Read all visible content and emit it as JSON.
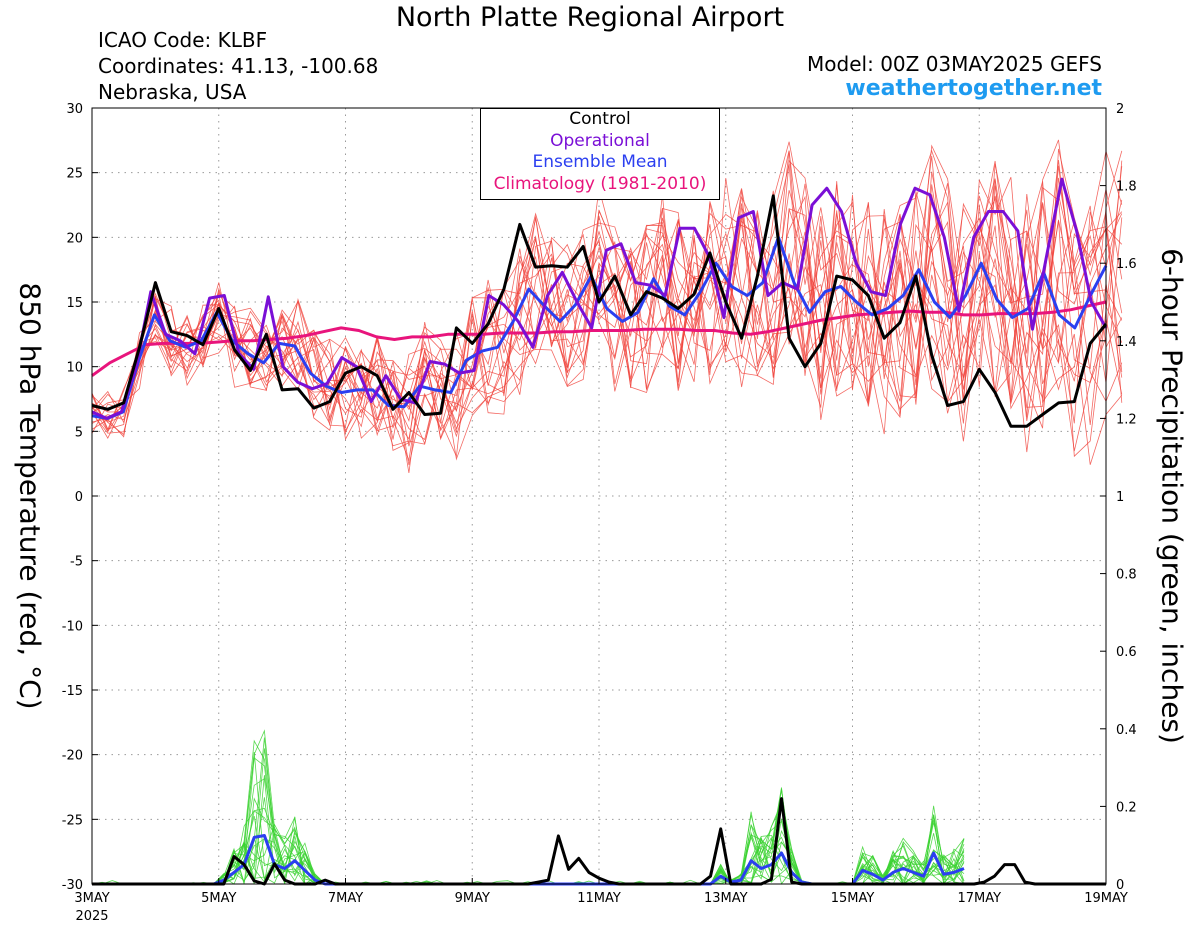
{
  "header": {
    "title": "North Platte Regional Airport",
    "icao": "ICAO Code: KLBF",
    "coordinates": "Coordinates: 41.13, -100.68",
    "region": "Nebraska, USA",
    "model": "Model: 00Z 03MAY2025 GEFS",
    "site": "weathertogether.net"
  },
  "colors": {
    "control": "#000000",
    "operational": "#7a0fd6",
    "ensemble_mean": "#2b3ff0",
    "climatology": "#e8147c",
    "temp_members": "#f0443c",
    "precip_members": "#3cd232",
    "site": "#1e9bf0"
  },
  "legend": [
    {
      "label": "Control",
      "color": "#000000"
    },
    {
      "label": "Operational",
      "color": "#7a0fd6"
    },
    {
      "label": "Ensemble Mean",
      "color": "#2b3ff0"
    },
    {
      "label": "Climatology (1981-2010)",
      "color": "#e8147c"
    }
  ],
  "chart_data": {
    "type": "line",
    "ylabel": "850 hPa Temperature (red, °C)",
    "y2label": "6-hour Precipitation (green, inches)",
    "ylim": [
      -30,
      30
    ],
    "y2lim": [
      0,
      2
    ],
    "yticks": [
      30,
      25,
      20,
      15,
      10,
      5,
      0,
      -5,
      -10,
      -15,
      -20,
      -25,
      -30
    ],
    "y2ticks": [
      "2",
      "1.8",
      "1.6",
      "1.4",
      "1.2",
      "1",
      "0.8",
      "0.6",
      "0.4",
      "0.2",
      "0"
    ],
    "xlim": [
      0,
      16
    ],
    "x_unit": "days since 00Z 3MAY2025, 6-hourly steps",
    "xticks": [
      {
        "x": 0,
        "label": "3MAY",
        "sub": "2025"
      },
      {
        "x": 2,
        "label": "5MAY"
      },
      {
        "x": 4,
        "label": "7MAY"
      },
      {
        "x": 6,
        "label": "9MAY"
      },
      {
        "x": 8,
        "label": "11MAY"
      },
      {
        "x": 10,
        "label": "13MAY"
      },
      {
        "x": 12,
        "label": "15MAY"
      },
      {
        "x": 14,
        "label": "17MAY"
      },
      {
        "x": 16,
        "label": "19MAY"
      }
    ],
    "grid": true,
    "series": [
      {
        "name": "Control",
        "axis": "temp",
        "values": [
          7,
          6.7,
          7.2,
          11.5,
          16.5,
          12.7,
          12.4,
          11.7,
          14.5,
          11.3,
          9.7,
          12.5,
          8.2,
          8.3,
          6.8,
          7.3,
          9.5,
          10,
          9.3,
          6.7,
          8,
          6.3,
          6.4,
          13,
          11.8,
          13.3,
          16,
          21,
          17.7,
          17.8,
          17.7,
          19.3,
          15,
          17,
          14,
          15.8,
          15.3,
          14.5,
          15.6,
          18.8,
          15,
          12.2,
          17,
          23.2,
          12.2,
          10,
          11.8,
          17,
          16.7,
          15.5,
          12.2,
          13.4,
          17,
          10.9,
          7,
          7.3,
          9.8,
          8,
          5.4,
          5.4,
          6.3,
          7.2,
          7.3,
          11.8,
          13.3
        ]
      },
      {
        "name": "Operational",
        "axis": "temp",
        "values": [
          6.5,
          6,
          6.5,
          10,
          15.8,
          12.5,
          12,
          11,
          15.3,
          15.5,
          11,
          9.8,
          15.4,
          10,
          8.8,
          8.3,
          8.7,
          10.7,
          10,
          7.3,
          9.3,
          7.5,
          7.2,
          10.4,
          10.2,
          9.5,
          9.7,
          15.5,
          14.8,
          13.5,
          11.5,
          15.5,
          17.3,
          15,
          13,
          19,
          19.5,
          16.5,
          16.3,
          15.5,
          20.7,
          20.7,
          18.5,
          13.8,
          21.5,
          22,
          15.5,
          16.5,
          16,
          22.5,
          23.8,
          22,
          18,
          15.8,
          15.5,
          21,
          23.8,
          23.3,
          20,
          14.3,
          20,
          22,
          22,
          20.5,
          12.9,
          18.8,
          24.5,
          20.5,
          15,
          13
        ]
      },
      {
        "name": "Ensemble Mean",
        "axis": "temp",
        "values": [
          6.2,
          6,
          6.5,
          10.5,
          14,
          12,
          11.5,
          12,
          14.2,
          12,
          11,
          10.3,
          11.8,
          11.6,
          9.5,
          8.5,
          8,
          8.2,
          8.2,
          7,
          6.9,
          8.5,
          8.2,
          8,
          10.5,
          11.2,
          11.5,
          13.5,
          16,
          14.7,
          13.5,
          14.8,
          17,
          14.5,
          13.5,
          14.2,
          16.8,
          14.7,
          14,
          15.8,
          18,
          16.2,
          15.5,
          16.5,
          20,
          16.5,
          14.2,
          15.8,
          16.2,
          15,
          14,
          14.5,
          15.5,
          17.5,
          15,
          13.8,
          15.5,
          18,
          15.2,
          13.8,
          14.5,
          17.3,
          14,
          13,
          15.5,
          17.8
        ]
      },
      {
        "name": "Climatology (1981-2010)",
        "axis": "temp",
        "values": [
          9.3,
          10.3,
          11,
          11.7,
          11.8,
          11.8,
          11.8,
          11.9,
          12,
          12,
          12.1,
          12.2,
          12.4,
          12.7,
          13,
          12.8,
          12.3,
          12.1,
          12.3,
          12.3,
          12.5,
          12.5,
          12.5,
          12.6,
          12.6,
          12.6,
          12.7,
          12.7,
          12.8,
          12.8,
          12.8,
          12.9,
          12.9,
          12.9,
          12.8,
          12.8,
          12.6,
          12.5,
          12.7,
          13,
          13.3,
          13.6,
          13.8,
          14,
          14.1,
          14.2,
          14.3,
          14.2,
          14.2,
          14,
          14,
          14.1,
          14.1,
          14.1,
          14.2,
          14.4,
          14.7,
          15
        ]
      },
      {
        "name": "Control Precip",
        "axis": "precip",
        "values": [
          0,
          0,
          0,
          0,
          0,
          0,
          0,
          0,
          0,
          0,
          0,
          0,
          0,
          0,
          0.071,
          0.05,
          0.008,
          0,
          0.052,
          0.01,
          0,
          0,
          0,
          0.01,
          0,
          0,
          0,
          0,
          0,
          0,
          0,
          0,
          0,
          0,
          0,
          0,
          0,
          0,
          0,
          0,
          0,
          0,
          0,
          0,
          0.005,
          0.01,
          0.124,
          0.038,
          0.066,
          0.03,
          0.015,
          0.005,
          0,
          0,
          0,
          0,
          0,
          0,
          0,
          0,
          0,
          0.02,
          0.142,
          0,
          0,
          0,
          0,
          0.012,
          0.22,
          0.005,
          0,
          0,
          0,
          0,
          0,
          0,
          0,
          0,
          0,
          0,
          0,
          0,
          0,
          0,
          0,
          0,
          0,
          0,
          0.005,
          0.02,
          0.05,
          0.05,
          0.005,
          0,
          0,
          0,
          0,
          0,
          0,
          0,
          0
        ]
      },
      {
        "name": "Ensemble Mean Precip",
        "axis": "precip",
        "values": [
          0,
          0,
          0,
          0,
          0,
          0,
          0,
          0,
          0,
          0,
          0,
          0,
          0,
          0.01,
          0.03,
          0.05,
          0.12,
          0.125,
          0.05,
          0.04,
          0.06,
          0.035,
          0.01,
          0,
          0,
          0,
          0,
          0,
          0,
          0,
          0,
          0,
          0,
          0,
          0,
          0,
          0,
          0,
          0,
          0,
          0,
          0,
          0,
          0,
          0,
          0,
          0,
          0,
          0,
          0,
          0,
          0,
          0,
          0,
          0,
          0,
          0,
          0,
          0,
          0,
          0,
          0,
          0.02,
          0.005,
          0.01,
          0.06,
          0.04,
          0.05,
          0.08,
          0.03,
          0.005,
          0,
          0,
          0,
          0,
          0,
          0.035,
          0.025,
          0.01,
          0.03,
          0.04,
          0.03,
          0.02,
          0.08,
          0.025,
          0.03,
          0.04
        ]
      }
    ]
  },
  "axis_labels": {
    "left": "850 hPa Temperature (red, °C)",
    "right": "6-hour Precipitation (green, inches)"
  }
}
